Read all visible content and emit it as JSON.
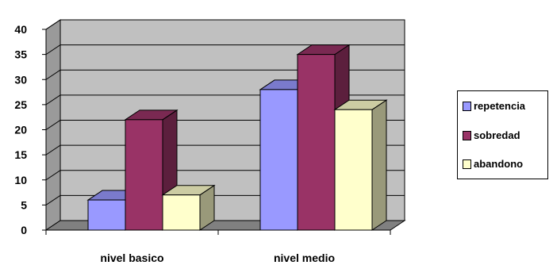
{
  "chart_data": {
    "type": "bar",
    "style": "3d-clustered-column",
    "categories": [
      "nivel basico",
      "nivel medio"
    ],
    "series": [
      {
        "name": "repetencia",
        "values": [
          6,
          28
        ],
        "color": "#9999ff"
      },
      {
        "name": "sobredad",
        "values": [
          22,
          35
        ],
        "color": "#993366"
      },
      {
        "name": "abandono",
        "values": [
          7,
          24
        ],
        "color": "#ffffcc"
      }
    ],
    "ylim": [
      0,
      40
    ],
    "yticks": [
      0,
      5,
      10,
      15,
      20,
      25,
      30,
      35,
      40
    ],
    "grid": true,
    "plot_background": "#c0c0c0",
    "legend": "right"
  }
}
